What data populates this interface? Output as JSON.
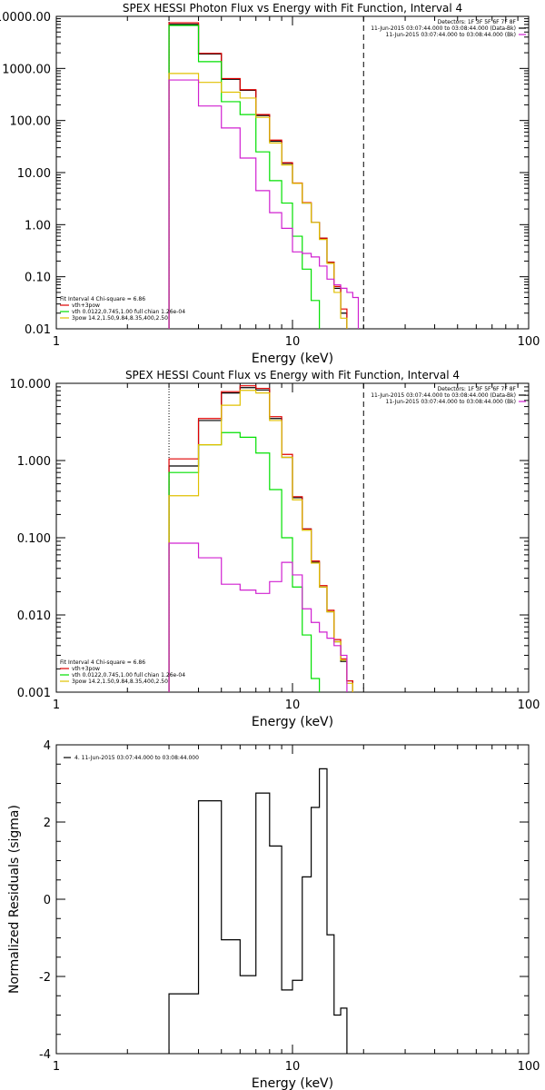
{
  "chart_data": [
    {
      "type": "line",
      "title": "SPEX HESSI Photon Flux vs Energy with Fit Function, Interval 4",
      "xlabel": "Energy (keV)",
      "ylabel": "",
      "xscale": "log",
      "yscale": "log",
      "xlim": [
        1,
        100
      ],
      "ylim": [
        0.01,
        10000
      ],
      "xticks": [
        {
          "v": 1,
          "label": "1"
        },
        {
          "v": 10,
          "label": "10"
        },
        {
          "v": 100,
          "label": "100"
        }
      ],
      "yticks": [
        {
          "v": 10000,
          "label": "10000.00"
        },
        {
          "v": 1000,
          "label": "1000.00"
        },
        {
          "v": 100,
          "label": "100.00"
        },
        {
          "v": 10,
          "label": "10.00"
        },
        {
          "v": 1,
          "label": "1.00"
        },
        {
          "v": 0.1,
          "label": "0.10"
        },
        {
          "v": 0.01,
          "label": "0.01"
        }
      ],
      "vlines": [
        {
          "x": 3,
          "style": "dotted"
        },
        {
          "x": 20,
          "style": "dashed"
        }
      ],
      "legend_topright": [
        {
          "text": "Detectors: 1F 3F 5F 6F 7F 8F",
          "color": ""
        },
        {
          "text": "11-Jun-2015 03:07:44.000 to 03:08:44.000 (Data-Bk)",
          "color": "#000000"
        },
        {
          "text": "11-Jun-2015 03:07:44.000 to 03:08:44.000 (Bk)",
          "color": "#d020d0"
        }
      ],
      "legend_bottomleft": [
        {
          "text": "Fit Interval 4   Chi-square = 6.86",
          "color": ""
        },
        {
          "text": "vth+3pow",
          "color": "#e00000"
        },
        {
          "text": "vth 0.0122,0.745,1.00  full chian 1.26e-04",
          "color": "#00e000"
        },
        {
          "text": "3pow 14.2,1.50,9.84,8.35,400,2.50",
          "color": "#e0c000"
        }
      ],
      "edges": [
        3,
        4,
        5,
        6,
        7,
        8,
        9,
        10,
        11,
        12,
        13,
        14,
        15,
        16,
        17,
        18,
        19,
        20,
        21,
        22
      ],
      "series": [
        {
          "name": "",
          "color": "#000000",
          "values": [
            7000,
            1900,
            620,
            380,
            125,
            40,
            15,
            6.2,
            2.6,
            1.1,
            0.55,
            0.19,
            0.06,
            0.02
          ]
        },
        {
          "name": "vth+3pow",
          "color": "#e00000",
          "values": [
            7500,
            1950,
            640,
            390,
            130,
            42,
            15.5,
            6.3,
            2.65,
            1.1,
            0.55,
            0.19,
            0.065,
            0.024
          ]
        },
        {
          "name": "vth",
          "color": "#00e000",
          "values": [
            6700,
            1350,
            230,
            130,
            25,
            7,
            2.6,
            0.6,
            0.14,
            0.035,
            0.0095
          ]
        },
        {
          "name": "3pow",
          "color": "#e0c000",
          "values": [
            800,
            540,
            350,
            270,
            115,
            37,
            14,
            6.2,
            2.6,
            1.1,
            0.52,
            0.18,
            0.05,
            0.016
          ]
        },
        {
          "name": "",
          "color": "#d020d0",
          "values": [
            600,
            190,
            72,
            19,
            4.5,
            1.7,
            0.85,
            0.3,
            0.28,
            0.24,
            0.16,
            0.09,
            0.07,
            0.06,
            0.05,
            0.04
          ]
        }
      ]
    },
    {
      "type": "line",
      "title": "SPEX HESSI Count Flux vs Energy with Fit Function, Interval 4",
      "xlabel": "Energy (keV)",
      "ylabel": "",
      "xscale": "log",
      "yscale": "log",
      "xlim": [
        1,
        100
      ],
      "ylim": [
        0.001,
        10
      ],
      "xticks": [
        {
          "v": 1,
          "label": "1"
        },
        {
          "v": 10,
          "label": "10"
        },
        {
          "v": 100,
          "label": "100"
        }
      ],
      "yticks": [
        {
          "v": 10,
          "label": "10.000"
        },
        {
          "v": 1,
          "label": "1.000"
        },
        {
          "v": 0.1,
          "label": "0.100"
        },
        {
          "v": 0.01,
          "label": "0.010"
        },
        {
          "v": 0.001,
          "label": "0.001"
        }
      ],
      "vlines": [
        {
          "x": 3,
          "style": "dotted"
        },
        {
          "x": 20,
          "style": "dashed"
        }
      ],
      "legend_topright": [
        {
          "text": "Detectors: 1F 3F 5F 6F 7F 8F",
          "color": ""
        },
        {
          "text": "11-Jun-2015 03:07:44.000 to 03:08:44.000 (Data-Bk)",
          "color": "#000000"
        },
        {
          "text": "11-Jun-2015 03:07:44.000 to 03:08:44.000 (Bk)",
          "color": "#d020d0"
        }
      ],
      "legend_bottomleft": [
        {
          "text": "Fit Interval 4   Chi-square = 6.86",
          "color": ""
        },
        {
          "text": "vth+3pow",
          "color": "#e00000"
        },
        {
          "text": "vth 0.0122,0.745,1.00  full chian 1.26e-04",
          "color": "#00e000"
        },
        {
          "text": "3pow 14.2,1.50,9.84,8.35,400,2.50",
          "color": "#e0c000"
        }
      ],
      "edges": [
        3,
        4,
        5,
        6,
        7,
        8,
        9,
        10,
        11,
        12,
        13,
        14,
        15,
        16,
        17,
        18,
        19,
        20,
        21,
        22
      ],
      "series": [
        {
          "name": "",
          "color": "#000000",
          "values": [
            0.85,
            3.3,
            7.5,
            8.8,
            8.2,
            3.5,
            1.1,
            0.33,
            0.13,
            0.048,
            0.023,
            0.011,
            0.0045,
            0.0025,
            0.0014
          ]
        },
        {
          "name": "vth+3pow",
          "color": "#e00000",
          "values": [
            1.05,
            3.5,
            7.8,
            9.3,
            8.6,
            3.7,
            1.2,
            0.34,
            0.13,
            0.05,
            0.024,
            0.0115,
            0.0048,
            0.0027,
            0.0014
          ]
        },
        {
          "name": "vth",
          "color": "#00e000",
          "values": [
            0.7,
            1.6,
            2.3,
            2.0,
            1.25,
            0.42,
            0.1,
            0.023,
            0.0055,
            0.0015
          ]
        },
        {
          "name": "3pow",
          "color": "#e0c000",
          "values": [
            0.35,
            1.6,
            5.2,
            8.1,
            7.5,
            3.3,
            1.1,
            0.31,
            0.125,
            0.047,
            0.023,
            0.011,
            0.0045,
            0.0026,
            0.0013
          ]
        },
        {
          "name": "",
          "color": "#d020d0",
          "values": [
            0.085,
            0.055,
            0.025,
            0.021,
            0.019,
            0.027,
            0.048,
            0.033,
            0.012,
            0.008,
            0.006,
            0.005,
            0.004,
            0.003
          ]
        }
      ]
    },
    {
      "type": "line",
      "title": "",
      "xlabel": "Energy (keV)",
      "ylabel": "Normalized Residuals (sigma)",
      "xscale": "log",
      "yscale": "linear",
      "xlim": [
        1,
        100
      ],
      "ylim": [
        -4,
        4
      ],
      "xticks": [
        {
          "v": 1,
          "label": "1"
        },
        {
          "v": 10,
          "label": "10"
        },
        {
          "v": 100,
          "label": "100"
        }
      ],
      "yticks": [
        {
          "v": 4,
          "label": "4"
        },
        {
          "v": 2,
          "label": "2"
        },
        {
          "v": 0,
          "label": "0"
        },
        {
          "v": -2,
          "label": "-2"
        },
        {
          "v": -4,
          "label": "-4"
        }
      ],
      "vlines": [],
      "legend_topright": [],
      "legend_bottomleft": [],
      "legend_topleft": [
        {
          "text": "4. 11-Jun-2015 03:07:44.000 to 03:08:44.000",
          "color": "#000000"
        }
      ],
      "edges": [
        3,
        4,
        5,
        6,
        7,
        8,
        9,
        10,
        11,
        12,
        13,
        14,
        15,
        16,
        17,
        18,
        19,
        20
      ],
      "series": [
        {
          "name": "",
          "color": "#000000",
          "values": [
            -2.45,
            2.55,
            -1.05,
            -1.98,
            2.75,
            1.38,
            -2.35,
            -2.1,
            0.58,
            2.38,
            3.38,
            -0.92,
            -3.0,
            -2.82
          ]
        }
      ]
    }
  ]
}
